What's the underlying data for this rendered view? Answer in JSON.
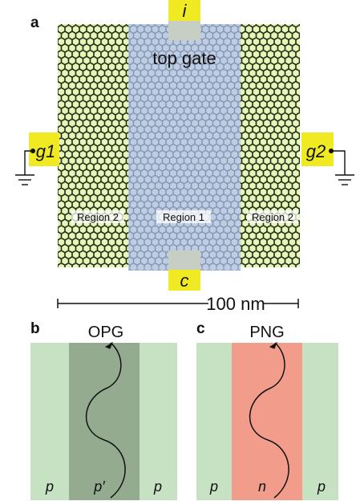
{
  "panels": {
    "a": {
      "letter": "a",
      "top_gate_label": "top gate",
      "terminals": {
        "top": "i",
        "bottom": "c",
        "left": "g1",
        "right": "g2"
      },
      "regions": {
        "left": "Region 2",
        "center": "Region 1",
        "right": "Region 2"
      },
      "scale_bar": "100 nm"
    },
    "b": {
      "letter": "b",
      "title": "OPG",
      "labels": [
        "p",
        "p′",
        "p"
      ]
    },
    "c": {
      "letter": "c",
      "title": "PNG",
      "labels": [
        "p",
        "n",
        "p"
      ]
    }
  },
  "colors": {
    "lattice_fill": "#e6f5b8",
    "lattice_stroke": "#1f2a14",
    "top_gate": "#b9c9e8",
    "contact_yellow": "#f0ea23",
    "contact_gray": "#c7cfc4",
    "panel_green_light": "#c6e2c3",
    "panel_green_dark": "#94ab90",
    "panel_red": "#f29c8c"
  }
}
